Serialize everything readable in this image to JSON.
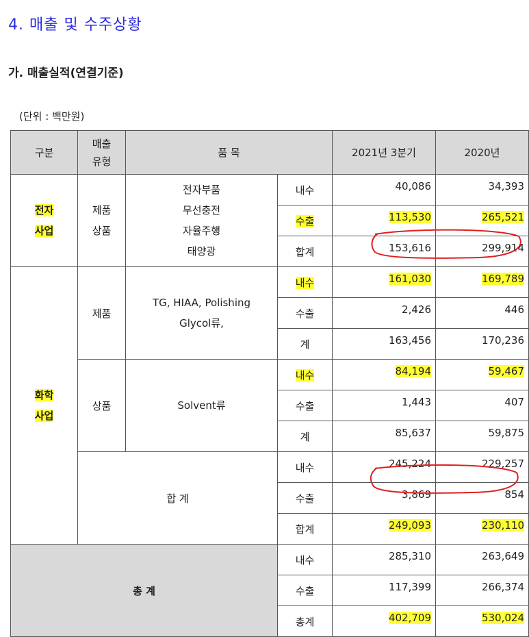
{
  "title": "4. 매출 및 수주상황",
  "subtitle": "가. 매출실적(연결기준)",
  "unit": "(단위 : 백만원)",
  "table": {
    "header": {
      "division": "구분",
      "sales_type": [
        "매출",
        "유형"
      ],
      "items": "품 목",
      "period_1": "2021년 3분기",
      "period_2": "2020년"
    },
    "electronics": {
      "segment": [
        "전자",
        "사업"
      ],
      "type": [
        "제품",
        "상품"
      ],
      "items": [
        "전자부품",
        "무선충전",
        "자율주행",
        "태양광"
      ],
      "rows": [
        [
          "내수",
          "40,086",
          "34,393"
        ],
        [
          "수출",
          "113,530",
          "265,521"
        ],
        [
          "합계",
          "153,616",
          "299,914"
        ]
      ]
    },
    "chemical": {
      "segment": [
        "화학",
        "사업"
      ],
      "products": {
        "type": "제품",
        "items": [
          "TG, HIAA, Polishing",
          "Glycol류,"
        ],
        "rows": [
          [
            "내수",
            "161,030",
            "169,789"
          ],
          [
            "수출",
            "2,426",
            "446"
          ],
          [
            "계",
            "163,456",
            "170,236"
          ]
        ]
      },
      "goods": {
        "type": "상품",
        "items": [
          "Solvent류"
        ],
        "rows": [
          [
            "내수",
            "84,194",
            "59,467"
          ],
          [
            "수출",
            "1,443",
            "407"
          ],
          [
            "계",
            "85,637",
            "59,875"
          ]
        ]
      },
      "subtotal": {
        "label": "합 계",
        "rows": [
          [
            "내수",
            "245,224",
            "229,257"
          ],
          [
            "수출",
            "3,869",
            "854"
          ],
          [
            "합계",
            "249,093",
            "230,110"
          ]
        ]
      }
    },
    "total": {
      "label": "총 계",
      "rows": [
        [
          "내수",
          "285,310",
          "263,649"
        ],
        [
          "수출",
          "117,399",
          "266,374"
        ],
        [
          "총계",
          "402,709",
          "530,024"
        ]
      ]
    }
  }
}
